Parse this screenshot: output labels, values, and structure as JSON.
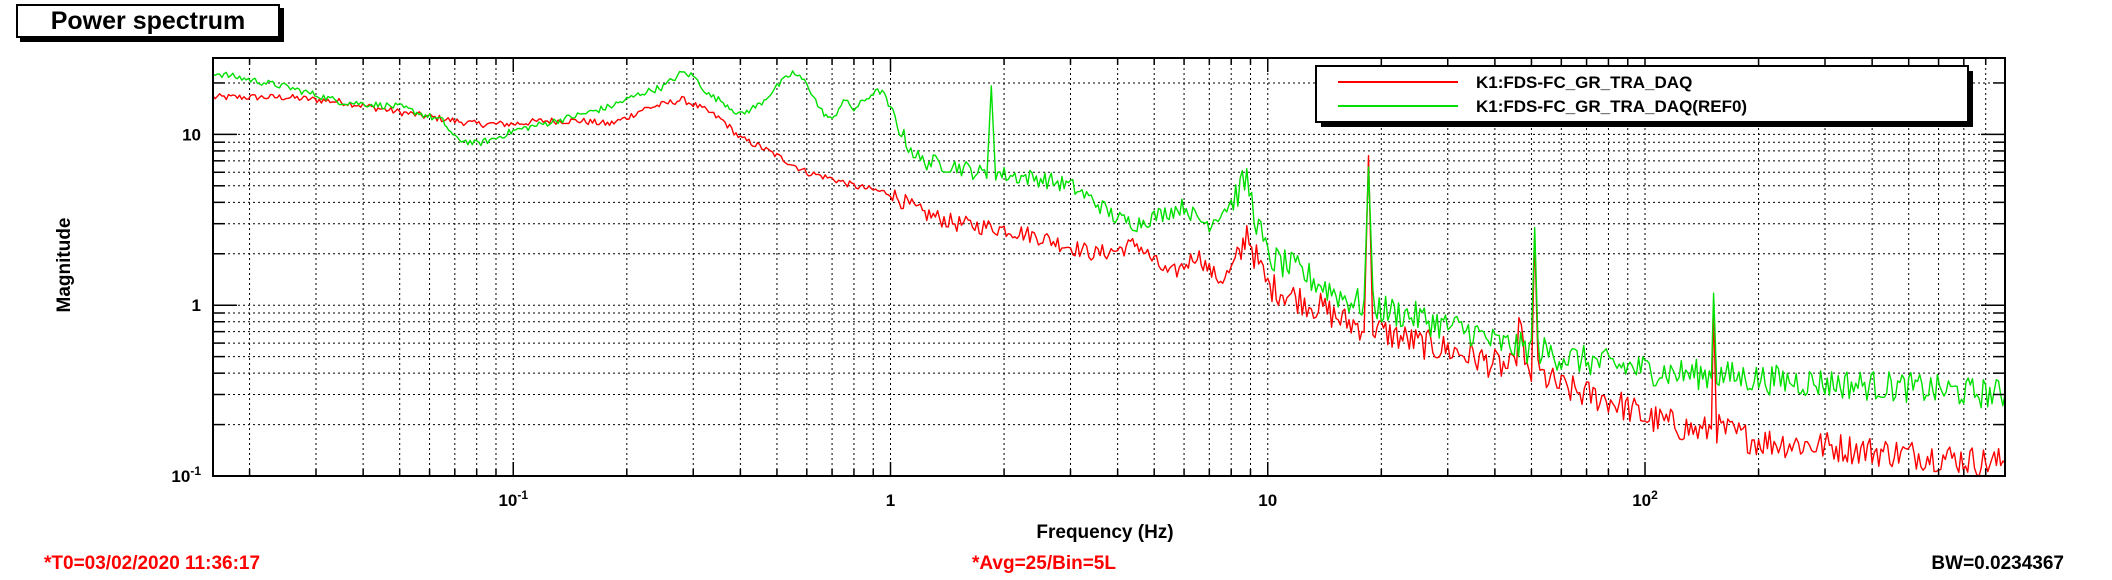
{
  "chart_data": {
    "type": "line",
    "title": "Power spectrum",
    "xlabel": "Frequency (Hz)",
    "ylabel": "Magnitude",
    "xscale": "log",
    "yscale": "log",
    "xlim": [
      0.016,
      900
    ],
    "ylim": [
      0.1,
      28
    ],
    "grid": true,
    "legend_position": "top-right",
    "x_ticks": [
      {
        "value": 0.1,
        "base": "10",
        "exp": "-1"
      },
      {
        "value": 1,
        "label": "1"
      },
      {
        "value": 10,
        "label": "10"
      },
      {
        "value": 100,
        "base": "10",
        "exp": "2"
      }
    ],
    "y_ticks": [
      {
        "value": 0.1,
        "base": "10",
        "exp": "-1"
      },
      {
        "value": 1,
        "label": "1"
      },
      {
        "value": 10,
        "label": "10"
      }
    ],
    "series": [
      {
        "name": "K1:FDS-FC_GR_TRA_DAQ",
        "color": "#ff0000",
        "points": [
          [
            0.016,
            16.5
          ],
          [
            0.025,
            16.5
          ],
          [
            0.035,
            15.5
          ],
          [
            0.05,
            13.5
          ],
          [
            0.07,
            12.0
          ],
          [
            0.08,
            11.5
          ],
          [
            0.1,
            11.5
          ],
          [
            0.12,
            12.0
          ],
          [
            0.15,
            12.0
          ],
          [
            0.18,
            11.5
          ],
          [
            0.2,
            12.5
          ],
          [
            0.22,
            14.0
          ],
          [
            0.25,
            15.0
          ],
          [
            0.28,
            16.0
          ],
          [
            0.3,
            15.0
          ],
          [
            0.33,
            13.5
          ],
          [
            0.36,
            12.0
          ],
          [
            0.4,
            9.5
          ],
          [
            0.45,
            8.5
          ],
          [
            0.5,
            7.5
          ],
          [
            0.6,
            6.0
          ],
          [
            0.7,
            5.5
          ],
          [
            0.8,
            5.0
          ],
          [
            1.0,
            4.5
          ],
          [
            1.2,
            3.5
          ],
          [
            1.5,
            3.0
          ],
          [
            2.0,
            2.8
          ],
          [
            2.5,
            2.5
          ],
          [
            3.0,
            2.2
          ],
          [
            3.5,
            2.0
          ],
          [
            4.0,
            2.1
          ],
          [
            4.5,
            2.3
          ],
          [
            5.0,
            1.8
          ],
          [
            5.5,
            1.5
          ],
          [
            6.0,
            1.7
          ],
          [
            6.5,
            2.0
          ],
          [
            7.0,
            1.6
          ],
          [
            7.5,
            1.4
          ],
          [
            8.0,
            1.6
          ],
          [
            8.5,
            2.0
          ],
          [
            8.8,
            2.8
          ],
          [
            9.2,
            2.0
          ],
          [
            10,
            1.3
          ],
          [
            12,
            1.1
          ],
          [
            14,
            0.95
          ],
          [
            16,
            0.8
          ],
          [
            18,
            0.75
          ],
          [
            18.5,
            6.5
          ],
          [
            19,
            0.75
          ],
          [
            20,
            0.7
          ],
          [
            25,
            0.6
          ],
          [
            30,
            0.55
          ],
          [
            35,
            0.5
          ],
          [
            40,
            0.45
          ],
          [
            45,
            0.42
          ],
          [
            47,
            0.9
          ],
          [
            48,
            0.4
          ],
          [
            50,
            0.38
          ],
          [
            51,
            2.8
          ],
          [
            52,
            0.4
          ],
          [
            60,
            0.33
          ],
          [
            70,
            0.3
          ],
          [
            80,
            0.28
          ],
          [
            90,
            0.25
          ],
          [
            100,
            0.22
          ],
          [
            120,
            0.2
          ],
          [
            140,
            0.18
          ],
          [
            150,
            0.19
          ],
          [
            152,
            1.1
          ],
          [
            155,
            0.19
          ],
          [
            200,
            0.16
          ],
          [
            300,
            0.15
          ],
          [
            400,
            0.14
          ],
          [
            600,
            0.13
          ],
          [
            800,
            0.12
          ],
          [
            900,
            0.12
          ]
        ]
      },
      {
        "name": "K1:FDS-FC_GR_TRA_DAQ(REF0)",
        "color": "#00e000",
        "points": [
          [
            0.016,
            23.0
          ],
          [
            0.025,
            19.0
          ],
          [
            0.035,
            15.5
          ],
          [
            0.05,
            14.5
          ],
          [
            0.065,
            12.0
          ],
          [
            0.07,
            9.5
          ],
          [
            0.08,
            8.8
          ],
          [
            0.09,
            9.5
          ],
          [
            0.1,
            10.5
          ],
          [
            0.12,
            11.5
          ],
          [
            0.15,
            13.0
          ],
          [
            0.18,
            14.5
          ],
          [
            0.2,
            16.0
          ],
          [
            0.22,
            17.5
          ],
          [
            0.25,
            19.0
          ],
          [
            0.28,
            23.0
          ],
          [
            0.3,
            22.0
          ],
          [
            0.33,
            17.0
          ],
          [
            0.36,
            15.5
          ],
          [
            0.4,
            13.0
          ],
          [
            0.45,
            15.0
          ],
          [
            0.5,
            19.0
          ],
          [
            0.55,
            23.0
          ],
          [
            0.6,
            20.0
          ],
          [
            0.65,
            14.0
          ],
          [
            0.7,
            12.0
          ],
          [
            0.75,
            16.0
          ],
          [
            0.8,
            14.0
          ],
          [
            0.9,
            17.5
          ],
          [
            0.95,
            18.0
          ],
          [
            1.0,
            14.0
          ],
          [
            1.1,
            9.0
          ],
          [
            1.2,
            7.0
          ],
          [
            1.5,
            6.5
          ],
          [
            1.7,
            6.0
          ],
          [
            1.8,
            5.8
          ],
          [
            1.85,
            20.0
          ],
          [
            1.9,
            6.0
          ],
          [
            2.0,
            5.8
          ],
          [
            2.5,
            5.5
          ],
          [
            3.0,
            5.0
          ],
          [
            3.5,
            4.0
          ],
          [
            4.0,
            3.2
          ],
          [
            4.5,
            3.0
          ],
          [
            5.0,
            3.3
          ],
          [
            6.0,
            3.8
          ],
          [
            6.5,
            3.2
          ],
          [
            7.0,
            3.0
          ],
          [
            8.0,
            4.0
          ],
          [
            8.8,
            5.5
          ],
          [
            9.2,
            3.5
          ],
          [
            10,
            1.9
          ],
          [
            12,
            1.6
          ],
          [
            14,
            1.3
          ],
          [
            16,
            1.1
          ],
          [
            18,
            1.0
          ],
          [
            18.5,
            6.5
          ],
          [
            19,
            1.0
          ],
          [
            20,
            0.95
          ],
          [
            25,
            0.85
          ],
          [
            30,
            0.75
          ],
          [
            35,
            0.7
          ],
          [
            40,
            0.6
          ],
          [
            50,
            0.55
          ],
          [
            51,
            3.0
          ],
          [
            52,
            0.55
          ],
          [
            60,
            0.5
          ],
          [
            80,
            0.45
          ],
          [
            100,
            0.42
          ],
          [
            120,
            0.4
          ],
          [
            150,
            0.39
          ],
          [
            152,
            1.3
          ],
          [
            155,
            0.39
          ],
          [
            200,
            0.37
          ],
          [
            300,
            0.35
          ],
          [
            500,
            0.33
          ],
          [
            700,
            0.31
          ],
          [
            900,
            0.3
          ]
        ]
      }
    ]
  },
  "footer": {
    "t0": "*T0=03/02/2020 11:36:17",
    "avg": "*Avg=25/Bin=5L",
    "bw": "BW=0.0234367"
  }
}
